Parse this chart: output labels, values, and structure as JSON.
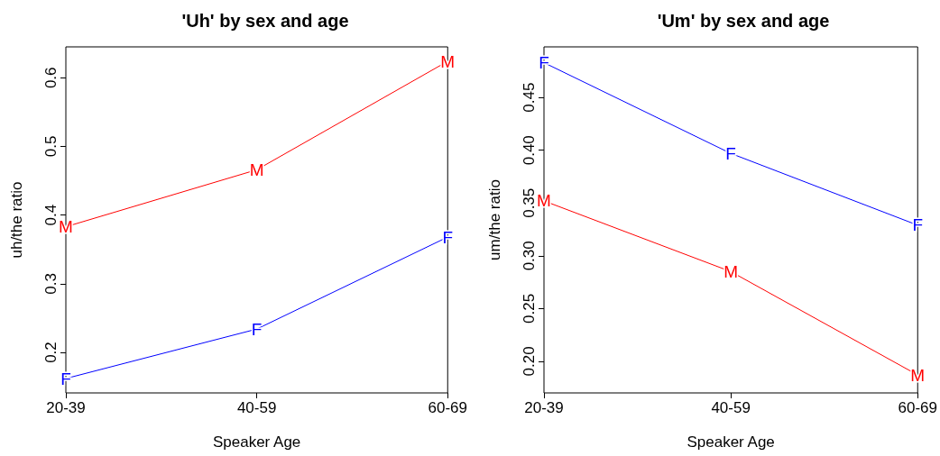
{
  "chart_data": [
    {
      "type": "line",
      "title": "'Uh' by sex and age",
      "xlabel": "Speaker Age",
      "ylabel": "uh/the ratio",
      "categories": [
        "20-39",
        "40-59",
        "60-69"
      ],
      "series": [
        {
          "name": "M",
          "color": "#ff0000",
          "values": [
            0.383,
            0.466,
            0.624
          ]
        },
        {
          "name": "F",
          "color": "#0000ff",
          "values": [
            0.162,
            0.234,
            0.368
          ]
        }
      ],
      "ylim": [
        0.141,
        0.645
      ],
      "yticks": [
        0.2,
        0.3,
        0.4,
        0.5,
        0.6
      ],
      "grid": false,
      "legend": false,
      "marker": "none"
    },
    {
      "type": "line",
      "title": "'Um' by sex and age",
      "xlabel": "Speaker Age",
      "ylabel": "um/the ratio",
      "categories": [
        "20-39",
        "40-59",
        "60-69"
      ],
      "series": [
        {
          "name": "F",
          "color": "#0000ff",
          "values": [
            0.483,
            0.397,
            0.329
          ]
        },
        {
          "name": "M",
          "color": "#ff0000",
          "values": [
            0.352,
            0.285,
            0.187
          ]
        }
      ],
      "ylim": [
        0.17,
        0.498
      ],
      "yticks": [
        {
          "value": 0.2,
          "label": "0.20"
        },
        0.25,
        {
          "value": 0.3,
          "label": "0.30"
        },
        0.35,
        {
          "value": 0.4,
          "label": "0.40"
        },
        0.45
      ],
      "grid": false,
      "legend": false,
      "marker": "none"
    }
  ]
}
